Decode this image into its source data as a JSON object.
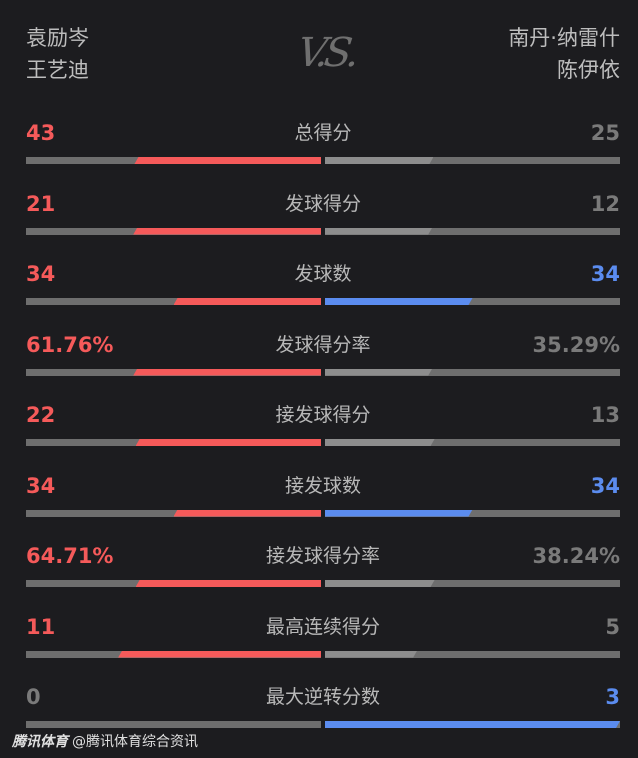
{
  "left_team": {
    "players": [
      "袁励岑",
      "王艺迪"
    ]
  },
  "right_team": {
    "players": [
      "南丹·纳雷什",
      "陈伊依"
    ]
  },
  "vs_label": "V.S.",
  "colors": {
    "red": "#f55a5a",
    "blue": "#5b8cef",
    "grey_value": "#7a7a7a",
    "track": "#6e6e6e",
    "light_grey": "#8d8d8d",
    "background": "#1c1c1f"
  },
  "stats": [
    {
      "label": "总得分",
      "left": "43",
      "right": "25"
    },
    {
      "label": "发球得分",
      "left": "21",
      "right": "12"
    },
    {
      "label": "发球数",
      "left": "34",
      "right": "34"
    },
    {
      "label": "发球得分率",
      "left": "61.76%",
      "right": "35.29%"
    },
    {
      "label": "接发球得分",
      "left": "22",
      "right": "13"
    },
    {
      "label": "接发球数",
      "left": "34",
      "right": "34"
    },
    {
      "label": "接发球得分率",
      "left": "64.71%",
      "right": "38.24%"
    },
    {
      "label": "最高连续得分",
      "left": "11",
      "right": "5"
    },
    {
      "label": "最大逆转分数",
      "left": "0",
      "right": "3"
    }
  ],
  "footer": {
    "brand": "腾讯体育",
    "source": "@腾讯体育综合资讯"
  }
}
